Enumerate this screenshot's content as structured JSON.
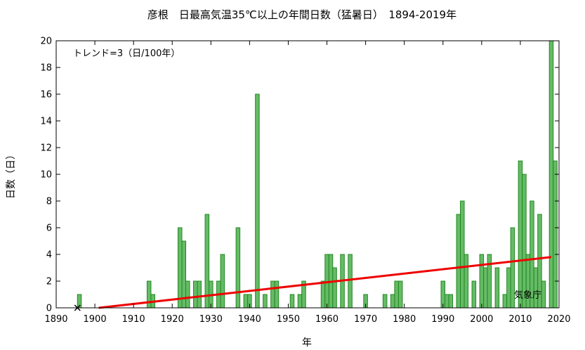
{
  "chart_data": {
    "type": "bar",
    "title": "彦根　日最高気温35℃以上の年間日数（猛暑日）　1894-2019年",
    "xlabel": "年",
    "ylabel": "日数（日）",
    "xlim": [
      1890,
      2020
    ],
    "ylim": [
      0,
      20
    ],
    "x_ticks": [
      1890,
      1900,
      1910,
      1920,
      1930,
      1940,
      1950,
      1960,
      1970,
      1980,
      1990,
      2000,
      2010,
      2020
    ],
    "y_ticks": [
      0,
      2,
      4,
      6,
      8,
      10,
      12,
      14,
      16,
      18,
      20
    ],
    "trend_text": "トレンド=3（日/100年）",
    "credit": "気象庁",
    "bar_color": "#66bb66",
    "bar_edge_color": "#228822",
    "trend_color": "#ee0000",
    "grid": false,
    "series": [
      {
        "x": [
          1896,
          1914,
          1915,
          1922,
          1923,
          1924,
          1926,
          1927,
          1929,
          1930,
          1932,
          1933,
          1937,
          1939,
          1940,
          1942,
          1944,
          1946,
          1947,
          1951,
          1953,
          1954,
          1959,
          1960,
          1961,
          1962,
          1964,
          1966,
          1970,
          1975,
          1977,
          1978,
          1979,
          1990,
          1991,
          1992,
          1994,
          1995,
          1996,
          1998,
          2000,
          2001,
          2002,
          2004,
          2006,
          2007,
          2008,
          2010,
          2011,
          2012,
          2013,
          2014,
          2015,
          2016,
          2018,
          2019
        ],
        "values": [
          1,
          2,
          1,
          6,
          5,
          2,
          2,
          2,
          7,
          2,
          2,
          4,
          6,
          1,
          1,
          16,
          1,
          2,
          2,
          1,
          1,
          2,
          2,
          4,
          4,
          3,
          4,
          4,
          1,
          1,
          1,
          2,
          2,
          2,
          1,
          1,
          7,
          8,
          4,
          2,
          4,
          3,
          4,
          3,
          1,
          3,
          6,
          11,
          10,
          4,
          8,
          3,
          7,
          2,
          20,
          11
        ]
      }
    ],
    "trend_line": {
      "x": [
        1901,
        2018
      ],
      "values": [
        0,
        3.8
      ]
    },
    "missing_marker": {
      "x": 1895.5,
      "value": 0
    }
  }
}
